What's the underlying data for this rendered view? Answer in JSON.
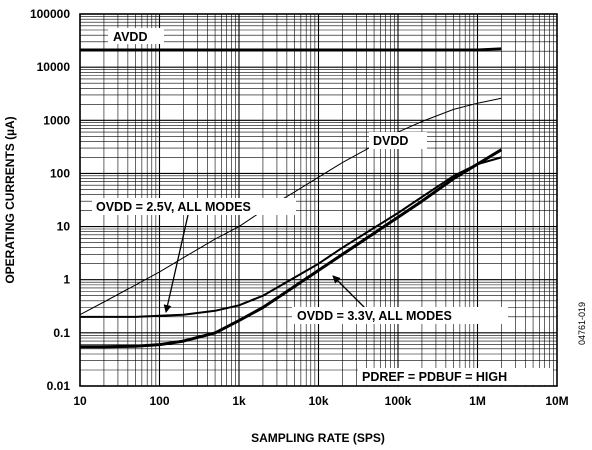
{
  "chart_data": {
    "type": "line",
    "title": "",
    "xlabel": "SAMPLING RATE (SPS)",
    "ylabel": "OPERATING CURRENTS (µA)",
    "xscale": "log",
    "yscale": "log",
    "xlim": [
      10,
      10000000
    ],
    "ylim": [
      0.01,
      100000
    ],
    "grid": true,
    "xtick_labels": [
      "10",
      "100",
      "1k",
      "10k",
      "100k",
      "1M",
      "10M"
    ],
    "ytick_labels": [
      "0.01",
      "0.1",
      "1",
      "10",
      "100",
      "1000",
      "10000",
      "100000"
    ],
    "series": [
      {
        "name": "AVDD",
        "style": "thick",
        "points": [
          [
            10,
            21000
          ],
          [
            100,
            21000
          ],
          [
            1000,
            21000
          ],
          [
            10000,
            21000
          ],
          [
            100000,
            21000
          ],
          [
            1000000,
            21000
          ],
          [
            2000000,
            22000
          ]
        ]
      },
      {
        "name": "DVDD",
        "style": "thin",
        "points": [
          [
            10,
            0.22
          ],
          [
            20,
            0.38
          ],
          [
            50,
            0.8
          ],
          [
            100,
            1.4
          ],
          [
            200,
            2.6
          ],
          [
            500,
            5.8
          ],
          [
            1000,
            10
          ],
          [
            2000,
            20
          ],
          [
            5000,
            45
          ],
          [
            10000,
            85
          ],
          [
            20000,
            160
          ],
          [
            50000,
            340
          ],
          [
            100000,
            600
          ],
          [
            200000,
            950
          ],
          [
            500000,
            1600
          ],
          [
            1000000,
            2100
          ],
          [
            2000000,
            2600
          ]
        ]
      },
      {
        "name": "OVDD = 2.5V, ALL MODES",
        "style": "medium",
        "points": [
          [
            10,
            0.2
          ],
          [
            20,
            0.2
          ],
          [
            50,
            0.2
          ],
          [
            100,
            0.21
          ],
          [
            200,
            0.22
          ],
          [
            500,
            0.26
          ],
          [
            1000,
            0.33
          ],
          [
            2000,
            0.5
          ],
          [
            5000,
            1.1
          ],
          [
            10000,
            2.0
          ],
          [
            20000,
            4.0
          ],
          [
            50000,
            9.5
          ],
          [
            100000,
            18
          ],
          [
            200000,
            36
          ],
          [
            500000,
            90
          ],
          [
            1000000,
            150
          ],
          [
            2000000,
            200
          ]
        ]
      },
      {
        "name": "OVDD = 3.3V, ALL MODES",
        "style": "thick",
        "points": [
          [
            10,
            0.055
          ],
          [
            20,
            0.055
          ],
          [
            50,
            0.056
          ],
          [
            100,
            0.06
          ],
          [
            200,
            0.07
          ],
          [
            500,
            0.1
          ],
          [
            1000,
            0.17
          ],
          [
            2000,
            0.3
          ],
          [
            5000,
            0.75
          ],
          [
            10000,
            1.5
          ],
          [
            20000,
            3.0
          ],
          [
            50000,
            7.5
          ],
          [
            100000,
            15
          ],
          [
            200000,
            30
          ],
          [
            500000,
            80
          ],
          [
            1000000,
            150
          ],
          [
            2000000,
            280
          ]
        ]
      }
    ],
    "annotations": [
      "AVDD",
      "DVDD",
      "OVDD = 2.5V, ALL MODES",
      "OVDD = 3.3V, ALL MODES",
      "PDREF = PDBUF = HIGH"
    ],
    "figure_code": "04761-019"
  }
}
